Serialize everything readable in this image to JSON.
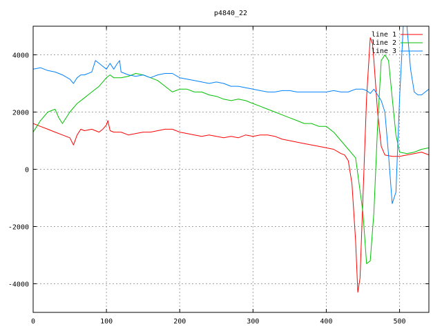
{
  "chart_data": {
    "type": "line",
    "title": "p4840_22",
    "xlabel": "",
    "ylabel": "",
    "xlim": [
      0,
      540
    ],
    "ylim": [
      -5000,
      5000
    ],
    "x_ticks": [
      0,
      100,
      200,
      300,
      400,
      500
    ],
    "y_ticks": [
      -4000,
      -2000,
      0,
      2000,
      4000
    ],
    "grid": true,
    "legend_position": "top-right",
    "series": [
      {
        "name": "line 1",
        "color": "#ff0000",
        "x": [
          0,
          10,
          20,
          30,
          40,
          50,
          55,
          60,
          65,
          70,
          80,
          90,
          95,
          100,
          102,
          105,
          110,
          120,
          130,
          140,
          150,
          160,
          170,
          180,
          190,
          200,
          210,
          220,
          230,
          240,
          250,
          260,
          270,
          280,
          290,
          300,
          310,
          320,
          330,
          340,
          350,
          360,
          370,
          380,
          390,
          400,
          410,
          420,
          425,
          430,
          435,
          440,
          443,
          446,
          450,
          455,
          460,
          463,
          465,
          470,
          475,
          480,
          490,
          500,
          510,
          520,
          530,
          540
        ],
        "y": [
          1600,
          1500,
          1400,
          1300,
          1200,
          1100,
          850,
          1200,
          1400,
          1350,
          1400,
          1300,
          1400,
          1550,
          1700,
          1350,
          1300,
          1300,
          1200,
          1250,
          1300,
          1300,
          1350,
          1400,
          1400,
          1300,
          1250,
          1200,
          1150,
          1200,
          1150,
          1100,
          1150,
          1100,
          1200,
          1150,
          1200,
          1200,
          1150,
          1050,
          1000,
          950,
          900,
          850,
          800,
          750,
          700,
          550,
          500,
          300,
          -500,
          -2500,
          -4300,
          -3800,
          -1000,
          2500,
          4600,
          4400,
          3800,
          2000,
          800,
          500,
          450,
          450,
          500,
          550,
          600,
          500
        ]
      },
      {
        "name": "line 2",
        "color": "#00c000",
        "x": [
          0,
          5,
          10,
          20,
          30,
          35,
          40,
          50,
          60,
          70,
          80,
          90,
          100,
          105,
          110,
          120,
          130,
          140,
          150,
          160,
          170,
          180,
          190,
          200,
          210,
          220,
          230,
          240,
          250,
          260,
          270,
          280,
          290,
          300,
          310,
          320,
          330,
          340,
          350,
          360,
          370,
          380,
          390,
          400,
          410,
          420,
          430,
          440,
          450,
          455,
          460,
          465,
          470,
          475,
          480,
          485,
          490,
          495,
          500,
          510,
          520,
          530,
          540
        ],
        "y": [
          1300,
          1500,
          1700,
          2000,
          2100,
          1800,
          1600,
          2000,
          2300,
          2500,
          2700,
          2900,
          3200,
          3300,
          3200,
          3200,
          3250,
          3350,
          3300,
          3200,
          3100,
          2900,
          2700,
          2800,
          2800,
          2700,
          2700,
          2600,
          2550,
          2450,
          2400,
          2450,
          2400,
          2300,
          2200,
          2100,
          2000,
          1900,
          1800,
          1700,
          1600,
          1600,
          1500,
          1500,
          1300,
          1000,
          700,
          400,
          -1500,
          -3300,
          -3200,
          -1500,
          1500,
          3800,
          4000,
          3800,
          2500,
          1200,
          600,
          550,
          600,
          700,
          750
        ]
      },
      {
        "name": "line 3",
        "color": "#0080ff",
        "x": [
          0,
          10,
          20,
          30,
          40,
          50,
          55,
          60,
          65,
          70,
          80,
          85,
          90,
          95,
          100,
          105,
          110,
          115,
          118,
          120,
          130,
          140,
          150,
          160,
          170,
          180,
          190,
          200,
          210,
          220,
          230,
          240,
          250,
          260,
          270,
          280,
          290,
          300,
          310,
          320,
          330,
          340,
          350,
          360,
          370,
          380,
          390,
          400,
          410,
          420,
          430,
          440,
          450,
          455,
          460,
          465,
          470,
          475,
          480,
          485,
          490,
          495,
          500,
          505,
          510,
          515,
          520,
          525,
          530,
          540
        ],
        "y": [
          3500,
          3550,
          3450,
          3400,
          3300,
          3150,
          3000,
          3200,
          3300,
          3300,
          3400,
          3800,
          3700,
          3600,
          3500,
          3700,
          3500,
          3700,
          3800,
          3400,
          3300,
          3250,
          3300,
          3200,
          3300,
          3350,
          3350,
          3200,
          3150,
          3100,
          3050,
          3000,
          3050,
          3000,
          2900,
          2900,
          2850,
          2800,
          2750,
          2700,
          2700,
          2750,
          2750,
          2700,
          2700,
          2700,
          2700,
          2700,
          2750,
          2700,
          2700,
          2800,
          2800,
          2750,
          2650,
          2800,
          2600,
          2400,
          2000,
          500,
          -1200,
          -800,
          2500,
          5000,
          5000,
          3500,
          2700,
          2600,
          2600,
          2800
        ]
      }
    ]
  }
}
